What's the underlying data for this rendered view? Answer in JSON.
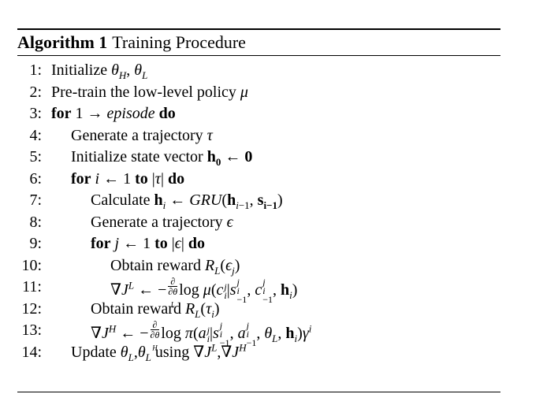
{
  "algorithm": {
    "label": "Algorithm 1",
    "title": "Training Procedure"
  },
  "lines": [
    {
      "num": "1:"
    },
    {
      "num": "2:"
    },
    {
      "num": "3:"
    },
    {
      "num": "4:"
    },
    {
      "num": "5:"
    },
    {
      "num": "6:"
    },
    {
      "num": "7:"
    },
    {
      "num": "8:"
    },
    {
      "num": "9:"
    },
    {
      "num": "10:"
    },
    {
      "num": "11:"
    },
    {
      "num": "12:"
    },
    {
      "num": "13:"
    },
    {
      "num": "14:"
    }
  ],
  "text": {
    "initialize": "Initialize",
    "pretrain": "Pre-train the low-level policy",
    "for": "for",
    "do": "do",
    "to": "to",
    "generate_traj": "Generate a trajectory",
    "init_state": "Initialize state vector",
    "calculate": "Calculate",
    "obtain_reward": "Obtain reward",
    "update": "Update",
    "using": "using"
  }
}
